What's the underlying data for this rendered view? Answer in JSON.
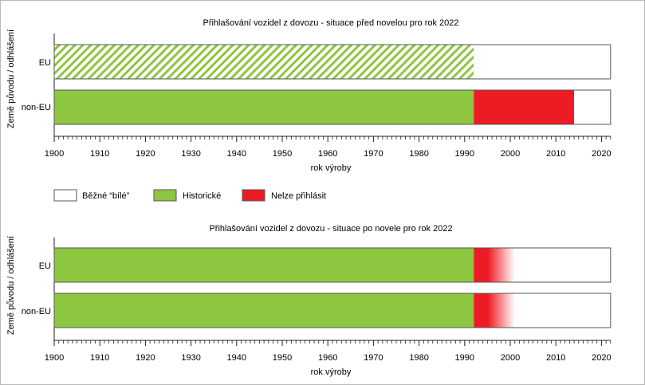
{
  "chart_data": [
    {
      "type": "bar",
      "orientation": "horizontal",
      "stacked": true,
      "title": "Přihlašování vozidel z dovozu - situace před novelou pro rok 2022",
      "xlabel": "rok výroby",
      "ylabel": "Země původu / odhlášení",
      "xlim": [
        1900,
        2022
      ],
      "xticks": [
        1900,
        1910,
        1920,
        1930,
        1940,
        1950,
        1960,
        1970,
        1980,
        1990,
        2000,
        2010,
        2020
      ],
      "categories": [
        "EU",
        "non-EU"
      ],
      "bars": [
        {
          "category": "EU",
          "segments": [
            {
              "type": "Historické",
              "from": 1900,
              "to": 1992,
              "style": "hatched"
            },
            {
              "type": "Běžné \"bílé\"",
              "from": 1992,
              "to": 2022,
              "style": "solid"
            }
          ]
        },
        {
          "category": "non-EU",
          "segments": [
            {
              "type": "Historické",
              "from": 1900,
              "to": 1992,
              "style": "solid"
            },
            {
              "type": "Nelze přihlásit",
              "from": 1992,
              "to": 2014,
              "style": "solid"
            },
            {
              "type": "Běžné \"bílé\"",
              "from": 2014,
              "to": 2022,
              "style": "solid"
            }
          ]
        }
      ]
    },
    {
      "type": "bar",
      "orientation": "horizontal",
      "stacked": true,
      "title": "Přihlašování vozidel z dovozu - situace po novele pro rok 2022",
      "xlabel": "rok výroby",
      "ylabel": "Země původu / odhlášení",
      "xlim": [
        1900,
        2022
      ],
      "xticks": [
        1900,
        1910,
        1920,
        1930,
        1940,
        1950,
        1960,
        1970,
        1980,
        1990,
        2000,
        2010,
        2020
      ],
      "categories": [
        "EU",
        "non-EU"
      ],
      "bars": [
        {
          "category": "EU",
          "segments": [
            {
              "type": "Historické",
              "from": 1900,
              "to": 1992,
              "style": "solid"
            },
            {
              "type": "Nelze přihlásit",
              "from": 1992,
              "to": 2001,
              "style": "fade"
            },
            {
              "type": "Běžné \"bílé\"",
              "from": 2001,
              "to": 2022,
              "style": "solid"
            }
          ]
        },
        {
          "category": "non-EU",
          "segments": [
            {
              "type": "Historické",
              "from": 1900,
              "to": 1992,
              "style": "solid"
            },
            {
              "type": "Nelze přihlásit",
              "from": 1992,
              "to": 2001,
              "style": "fade"
            },
            {
              "type": "Běžné \"bílé\"",
              "from": 2001,
              "to": 2022,
              "style": "solid"
            }
          ]
        }
      ]
    }
  ],
  "legend": {
    "items": [
      {
        "label": "Běžné “bílé”",
        "color": "#ffffff"
      },
      {
        "label": "Historické",
        "color": "#8dc63f"
      },
      {
        "label": "Nelze přihlásit",
        "color": "#ed1c24"
      }
    ]
  },
  "colors": {
    "Historické": "#8dc63f",
    "Nelze přihlásit": "#ed1c24",
    "Běžné \"bílé\"": "#ffffff",
    "outline": "#555555"
  }
}
